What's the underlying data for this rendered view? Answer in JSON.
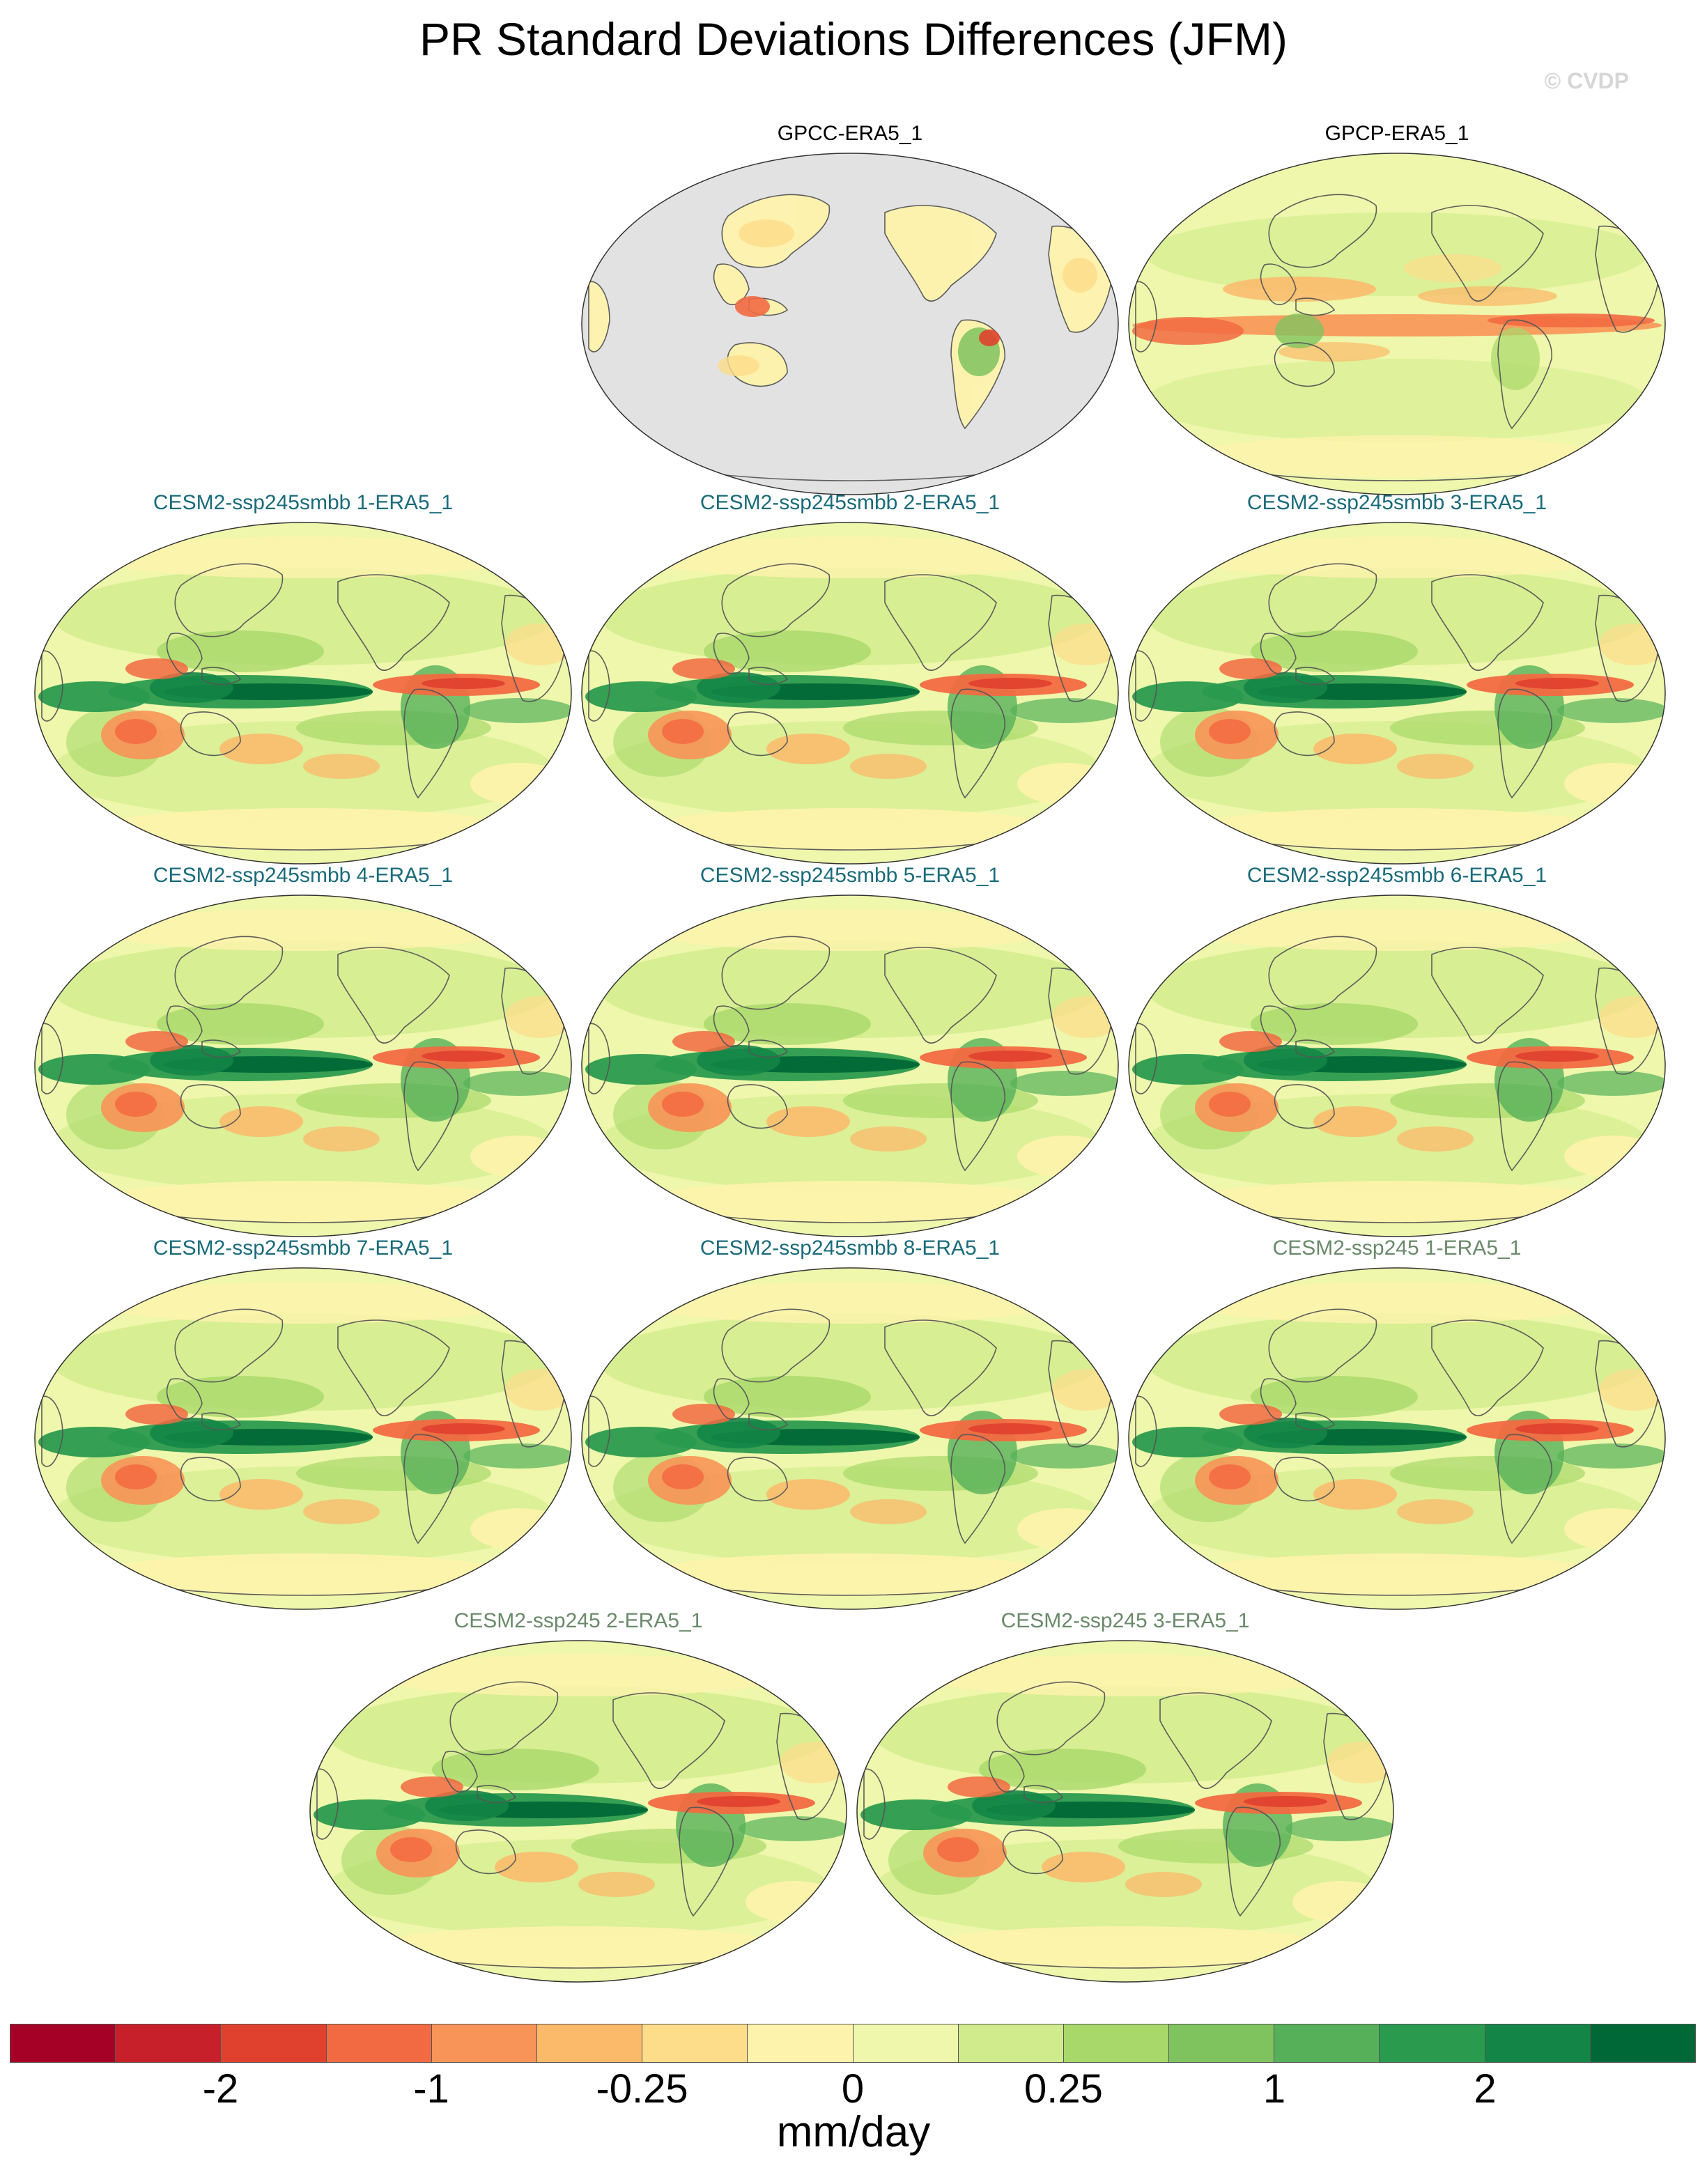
{
  "title": "PR Standard Deviations Differences (JFM)",
  "watermark": "© CVDP",
  "colors": {
    "obs_label": "#000000",
    "smbb_label": "#1a6b7a",
    "ssp245_label": "#6a8a6a",
    "land_gray": "#e2e2e2",
    "coast": "#555555"
  },
  "panels": [
    {
      "label": "GPCC-ERA5_1",
      "style": "land_only",
      "label_color": "obs_label"
    },
    {
      "label": "GPCP-ERA5_1",
      "style": "gpcp",
      "label_color": "obs_label"
    },
    {
      "label": "CESM2-ssp245smbb 1-ERA5_1",
      "style": "model",
      "label_color": "smbb_label"
    },
    {
      "label": "CESM2-ssp245smbb 2-ERA5_1",
      "style": "model",
      "label_color": "smbb_label"
    },
    {
      "label": "CESM2-ssp245smbb 3-ERA5_1",
      "style": "model",
      "label_color": "smbb_label"
    },
    {
      "label": "CESM2-ssp245smbb 4-ERA5_1",
      "style": "model",
      "label_color": "smbb_label"
    },
    {
      "label": "CESM2-ssp245smbb 5-ERA5_1",
      "style": "model",
      "label_color": "smbb_label"
    },
    {
      "label": "CESM2-ssp245smbb 6-ERA5_1",
      "style": "model",
      "label_color": "smbb_label"
    },
    {
      "label": "CESM2-ssp245smbb 7-ERA5_1",
      "style": "model",
      "label_color": "smbb_label"
    },
    {
      "label": "CESM2-ssp245smbb 8-ERA5_1",
      "style": "model",
      "label_color": "smbb_label"
    },
    {
      "label": "CESM2-ssp245 1-ERA5_1",
      "style": "model",
      "label_color": "ssp245_label"
    },
    {
      "label": "CESM2-ssp245 2-ERA5_1",
      "style": "model",
      "label_color": "ssp245_label"
    },
    {
      "label": "CESM2-ssp245 3-ERA5_1",
      "style": "model",
      "label_color": "ssp245_label"
    }
  ],
  "colorbar": {
    "colors": [
      "#a50026",
      "#c8202b",
      "#e0412f",
      "#f26a42",
      "#f89457",
      "#fbb96a",
      "#fddc8a",
      "#fef3ac",
      "#eef7ab",
      "#cfeb8b",
      "#a8d86a",
      "#7fc35f",
      "#56b05a",
      "#2a9a4e",
      "#138546",
      "#006837"
    ],
    "ticks": [
      "-2",
      "-1",
      "-0.25",
      "0",
      "0.25",
      "1",
      "2"
    ],
    "units": "mm/day"
  }
}
